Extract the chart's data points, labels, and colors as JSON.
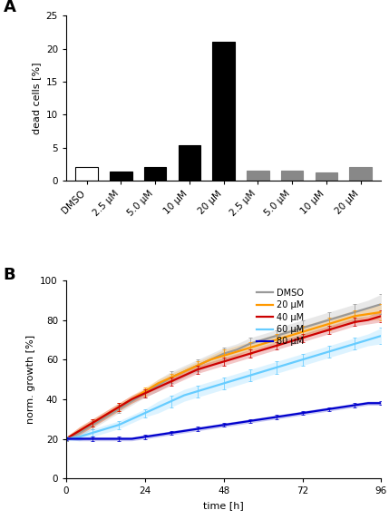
{
  "panel_A": {
    "categories": [
      "DMSO",
      "2.5 μM",
      "5.0 μM",
      "10 μM",
      "20 μM",
      "2.5 μM",
      "5.0 μM",
      "10 μM",
      "20 μM"
    ],
    "values": [
      2.1,
      1.4,
      2.1,
      5.3,
      21.0,
      1.55,
      1.55,
      1.3,
      2.0
    ],
    "colors": [
      "#ffffff",
      "#000000",
      "#000000",
      "#000000",
      "#000000",
      "#888888",
      "#888888",
      "#888888",
      "#888888"
    ],
    "edgecolors": [
      "#000000",
      "#000000",
      "#000000",
      "#000000",
      "#000000",
      "#888888",
      "#888888",
      "#888888",
      "#888888"
    ],
    "ylabel": "dead cells [%]",
    "ylim": [
      0,
      25
    ],
    "yticks": [
      0,
      5,
      10,
      15,
      20,
      25
    ]
  },
  "panel_B": {
    "time": [
      0,
      4,
      8,
      12,
      16,
      20,
      24,
      28,
      32,
      36,
      40,
      44,
      48,
      52,
      56,
      60,
      64,
      68,
      72,
      76,
      80,
      84,
      88,
      92,
      96
    ],
    "series": {
      "DMSO": [
        20,
        23,
        27,
        31,
        35,
        39,
        43,
        47,
        51,
        54,
        57,
        60,
        63,
        65,
        68,
        70,
        72,
        74,
        76,
        78,
        80,
        82,
        84,
        86,
        88
      ],
      "20 μM": [
        20,
        24,
        28,
        32,
        36,
        40,
        44,
        48,
        51,
        54,
        57,
        60,
        62,
        64,
        66,
        68,
        70,
        72,
        74,
        76,
        78,
        80,
        82,
        83,
        84
      ],
      "40 μM": [
        20,
        24,
        28,
        32,
        36,
        40,
        43,
        46,
        49,
        52,
        55,
        57,
        59,
        61,
        63,
        65,
        67,
        69,
        71,
        73,
        75,
        77,
        79,
        80,
        82
      ],
      "60 μM": [
        20,
        21,
        23,
        25,
        27,
        30,
        33,
        36,
        39,
        42,
        44,
        46,
        48,
        50,
        52,
        54,
        56,
        58,
        60,
        62,
        64,
        66,
        68,
        70,
        72
      ],
      "80 μM": [
        20,
        20,
        20,
        20,
        20,
        20,
        21,
        22,
        23,
        24,
        25,
        26,
        27,
        28,
        29,
        30,
        31,
        32,
        33,
        34,
        35,
        36,
        37,
        38,
        38
      ]
    },
    "errors": {
      "DMSO": [
        1,
        2,
        2,
        2,
        2,
        2,
        2,
        3,
        3,
        3,
        3,
        3,
        3,
        3,
        3,
        3,
        3,
        4,
        4,
        4,
        4,
        4,
        4,
        4,
        5
      ],
      "20 μM": [
        1,
        2,
        2,
        2,
        2,
        2,
        2,
        2,
        2,
        2,
        2,
        2,
        3,
        3,
        3,
        3,
        3,
        3,
        3,
        3,
        3,
        3,
        3,
        3,
        4
      ],
      "40 μM": [
        1,
        2,
        2,
        2,
        2,
        2,
        2,
        2,
        2,
        2,
        2,
        2,
        2,
        2,
        2,
        2,
        2,
        2,
        2,
        2,
        2,
        2,
        2,
        2,
        3
      ],
      "60 μM": [
        1,
        2,
        2,
        2,
        2,
        2,
        2,
        3,
        3,
        3,
        3,
        3,
        3,
        3,
        3,
        3,
        3,
        3,
        3,
        3,
        3,
        3,
        3,
        3,
        4
      ],
      "80 μM": [
        0.5,
        1,
        1,
        1,
        1,
        1,
        1,
        1,
        1,
        1,
        1,
        1,
        1,
        1,
        1,
        1,
        1,
        1,
        1,
        1,
        1,
        1,
        1,
        1,
        1
      ]
    },
    "colors": {
      "DMSO": "#999999",
      "20 μM": "#ff9900",
      "40 μM": "#cc0000",
      "60 μM": "#66ccff",
      "80 μM": "#0000cc"
    },
    "ylabel": "norm. growth [%]",
    "xlabel": "time [h]",
    "ylim": [
      0,
      100
    ],
    "yticks": [
      0,
      20,
      40,
      60,
      80,
      100
    ],
    "xticks": [
      0,
      24,
      48,
      72,
      96
    ]
  }
}
